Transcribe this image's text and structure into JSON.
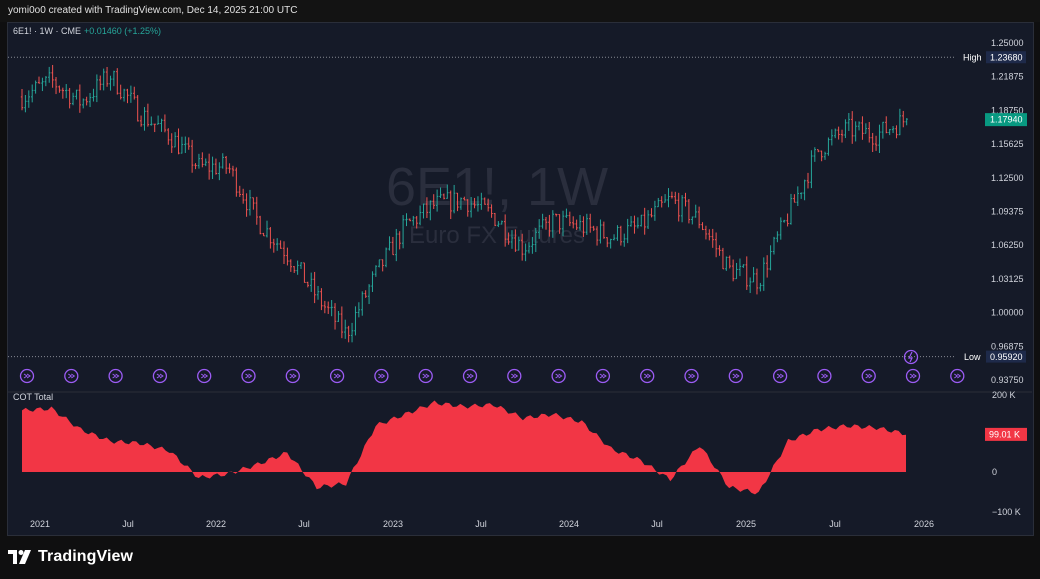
{
  "header": {
    "created_text": "yomi0o0 created with TradingView.com, Dec 14, 2025 21:00 UTC"
  },
  "symbol": {
    "ticker": "6E1!",
    "interval": "1W",
    "exchange": "CME",
    "change": "+0.01460 (+1.25%)",
    "sep": "·"
  },
  "watermark": {
    "main": "6E1!, 1W",
    "sub": "Euro FX Futures"
  },
  "price_axis": {
    "ticks": [
      "1.25000",
      "1.21875",
      "1.18750",
      "1.15625",
      "1.12500",
      "1.09375",
      "1.06250",
      "1.03125",
      "1.00000",
      "0.96875",
      "0.93750"
    ],
    "high_label": "High",
    "high_value": "1.23680",
    "low_label": "Low",
    "low_value": "0.95920",
    "last_value": "1.17940"
  },
  "cot": {
    "title": "COT Total",
    "axis_top": "200 K",
    "axis_zero": "0",
    "axis_bottom": "−100 K",
    "last_value": "99.01 K"
  },
  "time_axis": {
    "labels": [
      "2021",
      "Jul",
      "2022",
      "Jul",
      "2023",
      "Jul",
      "2024",
      "Jul",
      "2025",
      "Jul",
      "2026"
    ]
  },
  "footer": {
    "brand": "TradingView"
  },
  "colors": {
    "up": "#26a69a",
    "down": "#ef5350",
    "cot": "#f23645",
    "bg": "#151a28",
    "marker": "#9c5cf5",
    "last_tag": "#089981"
  },
  "chart_data": [
    {
      "type": "candlestick",
      "title": "6E1! · 1W · CME",
      "ylim": [
        0.93,
        1.255
      ],
      "high": 1.2368,
      "low": 0.9592,
      "last": 1.1794,
      "x": [
        "2020-12",
        "2021-02",
        "2021-04",
        "2021-06",
        "2021-08",
        "2021-10",
        "2021-12",
        "2022-02",
        "2022-04",
        "2022-06",
        "2022-08",
        "2022-10",
        "2022-12",
        "2023-02",
        "2023-04",
        "2023-06",
        "2023-08",
        "2023-10",
        "2023-12",
        "2024-02",
        "2024-04",
        "2024-06",
        "2024-08",
        "2024-10",
        "2024-12",
        "2025-02",
        "2025-04",
        "2025-06",
        "2025-08",
        "2025-10",
        "2025-12"
      ],
      "y": [
        1.2,
        1.215,
        1.195,
        1.22,
        1.185,
        1.165,
        1.135,
        1.135,
        1.085,
        1.055,
        1.015,
        0.98,
        1.035,
        1.08,
        1.1,
        1.105,
        1.09,
        1.06,
        1.085,
        1.08,
        1.07,
        1.08,
        1.105,
        1.085,
        1.04,
        1.03,
        1.09,
        1.15,
        1.17,
        1.165,
        1.1794
      ]
    },
    {
      "type": "area",
      "title": "COT Total",
      "ylim": [
        -100000,
        200000
      ],
      "x": [
        "2020-12",
        "2021-02",
        "2021-04",
        "2021-06",
        "2021-08",
        "2021-10",
        "2021-12",
        "2022-02",
        "2022-04",
        "2022-06",
        "2022-08",
        "2022-10",
        "2022-12",
        "2023-02",
        "2023-04",
        "2023-06",
        "2023-08",
        "2023-10",
        "2023-12",
        "2024-02",
        "2024-04",
        "2024-06",
        "2024-08",
        "2024-10",
        "2024-12",
        "2025-02",
        "2025-04",
        "2025-06",
        "2025-08",
        "2025-10",
        "2025-12"
      ],
      "y": [
        160000,
        165000,
        110000,
        80000,
        75000,
        55000,
        -15000,
        -5000,
        20000,
        50000,
        -40000,
        -30000,
        120000,
        150000,
        180000,
        170000,
        175000,
        140000,
        150000,
        130000,
        60000,
        30000,
        -20000,
        70000,
        -40000,
        -55000,
        80000,
        110000,
        120000,
        115000,
        99010
      ]
    }
  ]
}
